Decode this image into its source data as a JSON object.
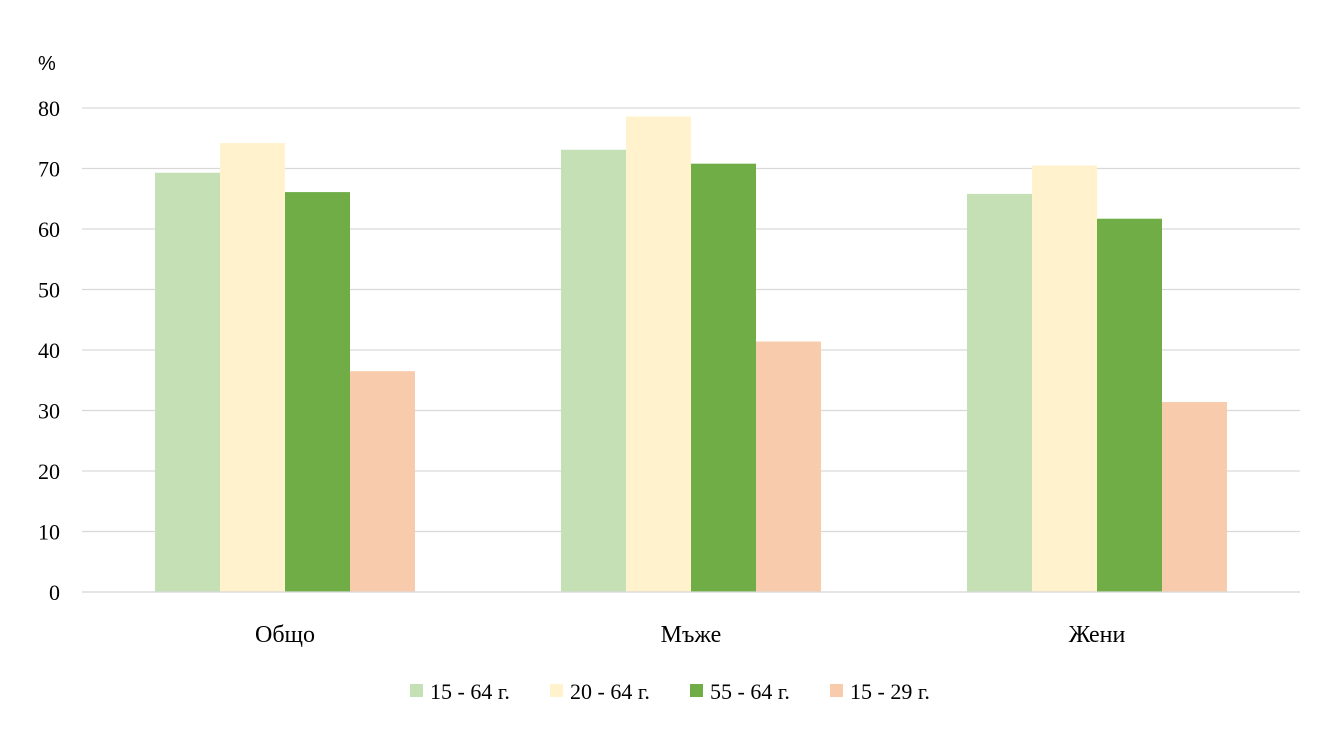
{
  "chart_data": {
    "type": "bar",
    "title": "",
    "xlabel": "",
    "ylabel": "",
    "unit_label": "%",
    "categories": [
      "Общо",
      "Мъже",
      "Жени"
    ],
    "series": [
      {
        "name": "15 - 64 г.",
        "color": "#c5e0b4",
        "values": [
          69.3,
          73.1,
          65.8
        ]
      },
      {
        "name": "20 - 64 г.",
        "color": "#fff2cc",
        "values": [
          74.2,
          78.6,
          70.5
        ]
      },
      {
        "name": "55 - 64 г.",
        "color": "#70ad47",
        "values": [
          66.1,
          70.8,
          61.7
        ]
      },
      {
        "name": "15 - 29 г.",
        "color": "#f8cbad",
        "values": [
          36.5,
          41.4,
          31.4
        ]
      }
    ],
    "ylim": [
      0,
      80
    ],
    "yticks": [
      "0",
      "10",
      "20",
      "30",
      "40",
      "50",
      "60",
      "70",
      "80"
    ],
    "grid": true,
    "legend_position": "bottom"
  }
}
